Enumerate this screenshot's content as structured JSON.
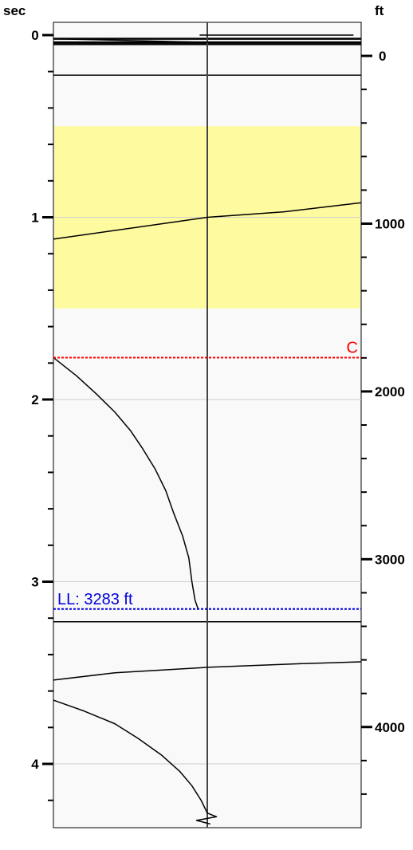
{
  "chart_data": {
    "type": "line",
    "left_axis": {
      "label": "sec",
      "ticks": [
        "0",
        "1",
        "2",
        "3",
        "4"
      ],
      "tick_values": [
        0,
        1,
        2,
        3,
        4
      ],
      "range": [
        -0.07,
        4.35
      ]
    },
    "right_axis": {
      "label": "ft",
      "ticks": [
        "0",
        "1000",
        "2000",
        "3000",
        "4000"
      ],
      "tick_values": [
        0,
        1000,
        2000,
        3000,
        4000
      ],
      "range": [
        -200,
        4600
      ]
    },
    "grid": "horizontal at major sec ticks",
    "highlight_band": {
      "from_sec": 0.5,
      "to_sec": 1.5,
      "color": "#fdfa9f"
    },
    "markers": [
      {
        "label": "C",
        "sec": 1.77,
        "color": "#ff0000",
        "style": "dashed",
        "label_side": "right"
      },
      {
        "label": "LL: 3283 ft",
        "sec": 3.15,
        "color": "#0000dd",
        "style": "dashed",
        "label_side": "left"
      }
    ],
    "horizontal_lines_sec": [
      0.02,
      0.04,
      0.05,
      0.22,
      3.22
    ],
    "series": [
      {
        "points": [
          [
            -0.05,
            0.0
          ],
          [
            0.95,
            0.0
          ]
        ]
      },
      {
        "points": [
          [
            -1,
            0.02
          ],
          [
            0.0,
            0.04
          ],
          [
            0.96,
            0.04
          ]
        ]
      },
      {
        "points": [
          [
            -1,
            1.12
          ],
          [
            -0.5,
            1.06
          ],
          [
            0.0,
            1.0
          ],
          [
            0.5,
            0.97
          ],
          [
            1.0,
            0.92
          ]
        ]
      },
      {
        "points": [
          [
            -1,
            1.77
          ],
          [
            -0.85,
            1.87
          ],
          [
            -0.72,
            1.97
          ],
          [
            -0.6,
            2.07
          ],
          [
            -0.5,
            2.17
          ],
          [
            -0.42,
            2.27
          ],
          [
            -0.34,
            2.38
          ],
          [
            -0.27,
            2.5
          ],
          [
            -0.22,
            2.62
          ],
          [
            -0.16,
            2.75
          ],
          [
            -0.12,
            2.87
          ],
          [
            -0.1,
            3.0
          ],
          [
            -0.08,
            3.1
          ],
          [
            -0.06,
            3.15
          ]
        ]
      },
      {
        "points": [
          [
            -1,
            3.54
          ],
          [
            -0.6,
            3.5
          ],
          [
            0.0,
            3.47
          ],
          [
            0.6,
            3.45
          ],
          [
            1.0,
            3.44
          ]
        ]
      },
      {
        "points": [
          [
            -1,
            3.65
          ],
          [
            -0.8,
            3.71
          ],
          [
            -0.6,
            3.78
          ],
          [
            -0.45,
            3.86
          ],
          [
            -0.3,
            3.95
          ],
          [
            -0.18,
            4.04
          ],
          [
            -0.1,
            4.12
          ],
          [
            -0.04,
            4.2
          ],
          [
            0.0,
            4.27
          ],
          [
            0.06,
            4.29
          ],
          [
            -0.07,
            4.31
          ],
          [
            0.02,
            4.33
          ]
        ]
      }
    ]
  }
}
